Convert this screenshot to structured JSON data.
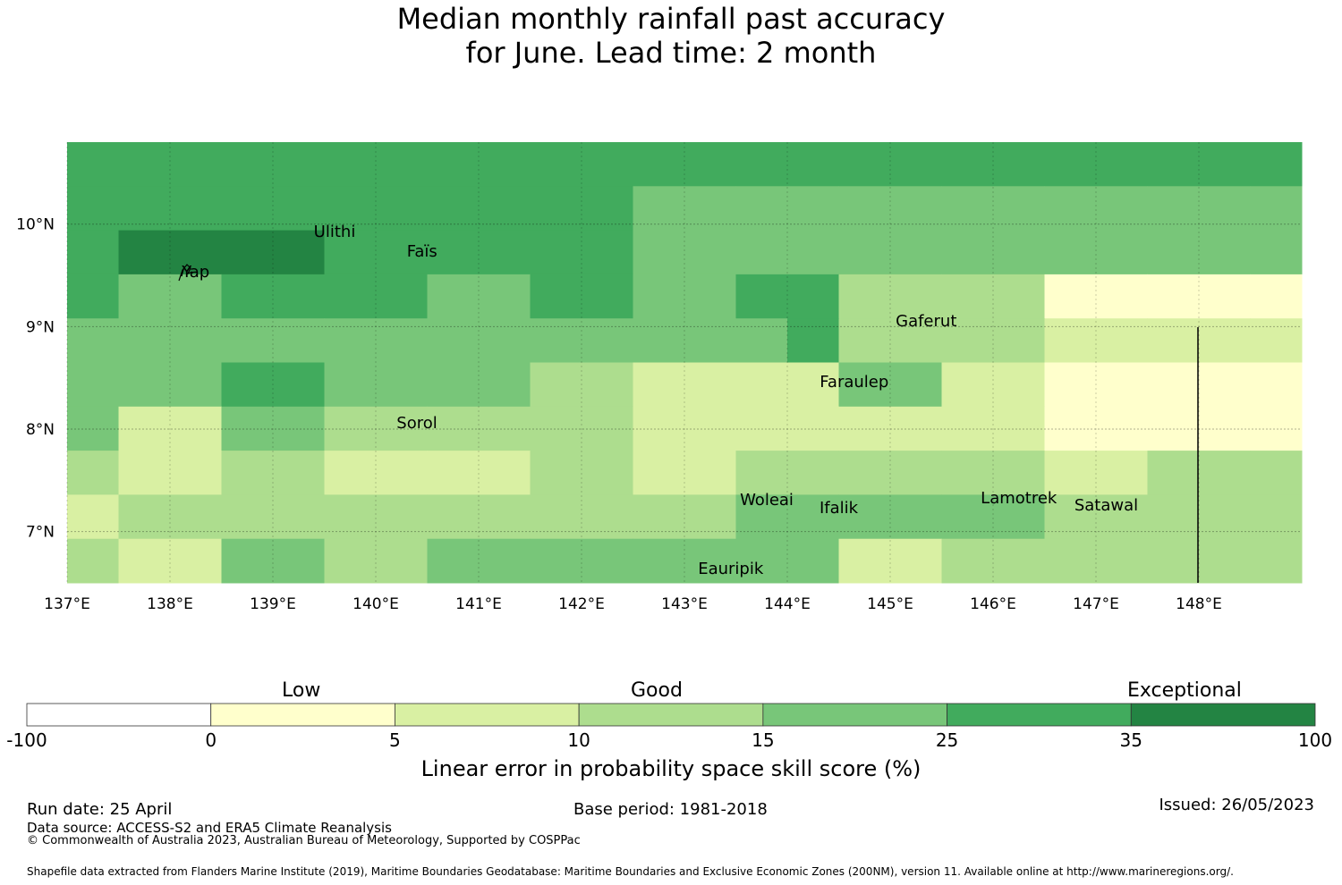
{
  "title": {
    "line1": "Median monthly rainfall past accuracy",
    "line2": "for June. Lead time: 2 month"
  },
  "map": {
    "lon_range": [
      137.0,
      149.0
    ],
    "lat_range": [
      6.5,
      10.8
    ],
    "lon_ticks": [
      "137°E",
      "138°E",
      "139°E",
      "140°E",
      "141°E",
      "142°E",
      "143°E",
      "144°E",
      "145°E",
      "146°E",
      "147°E",
      "148°E"
    ],
    "lat_ticks": [
      "10°N",
      "9°N",
      "8°N",
      "7°N"
    ],
    "places": [
      {
        "name": "Ulithi",
        "lon": 139.6,
        "lat": 9.92
      },
      {
        "name": "Faïs",
        "lon": 140.45,
        "lat": 9.73
      },
      {
        "name": "Yap",
        "lon": 138.25,
        "lat": 9.53
      },
      {
        "name": "Gaferut",
        "lon": 145.35,
        "lat": 9.05
      },
      {
        "name": "Faraulep",
        "lon": 144.65,
        "lat": 8.45
      },
      {
        "name": "Sorol",
        "lon": 140.4,
        "lat": 8.05
      },
      {
        "name": "Woleai",
        "lon": 143.8,
        "lat": 7.3
      },
      {
        "name": "Ifalik",
        "lon": 144.5,
        "lat": 7.22
      },
      {
        "name": "Lamotrek",
        "lon": 146.25,
        "lat": 7.32
      },
      {
        "name": "Satawal",
        "lon": 147.1,
        "lat": 7.25
      },
      {
        "name": "Eauripik",
        "lon": 143.45,
        "lat": 6.63
      }
    ],
    "grid_skill": [
      [
        25,
        25,
        25,
        25,
        25,
        25,
        25,
        25,
        25,
        25,
        25,
        25,
        25,
        25,
        25,
        25,
        25,
        25,
        25,
        25,
        25,
        25,
        25,
        25
      ],
      [
        25,
        25,
        25,
        25,
        25,
        25,
        25,
        25,
        25,
        25,
        25,
        15,
        15,
        15,
        15,
        15,
        15,
        15,
        15,
        15,
        15,
        15,
        15,
        15
      ],
      [
        25,
        35,
        35,
        35,
        35,
        25,
        25,
        25,
        25,
        25,
        25,
        15,
        15,
        15,
        15,
        15,
        15,
        15,
        15,
        15,
        15,
        15,
        15,
        15
      ],
      [
        25,
        15,
        15,
        25,
        25,
        25,
        25,
        15,
        15,
        25,
        25,
        15,
        15,
        25,
        25,
        10,
        10,
        10,
        10,
        0,
        0,
        0,
        0,
        0
      ],
      [
        15,
        15,
        15,
        15,
        15,
        15,
        15,
        15,
        15,
        15,
        15,
        15,
        15,
        15,
        25,
        10,
        10,
        10,
        10,
        5,
        5,
        5,
        5,
        5
      ],
      [
        15,
        15,
        15,
        25,
        25,
        15,
        15,
        15,
        15,
        10,
        10,
        5,
        5,
        5,
        5,
        15,
        15,
        5,
        5,
        0,
        0,
        0,
        0,
        0
      ],
      [
        15,
        5,
        5,
        15,
        15,
        10,
        10,
        10,
        10,
        10,
        10,
        5,
        5,
        5,
        5,
        5,
        5,
        5,
        5,
        0,
        0,
        0,
        0,
        0
      ],
      [
        10,
        5,
        5,
        10,
        10,
        5,
        5,
        5,
        5,
        10,
        10,
        5,
        5,
        10,
        10,
        10,
        10,
        10,
        10,
        5,
        5,
        10,
        10,
        10
      ],
      [
        5,
        10,
        10,
        10,
        10,
        10,
        10,
        10,
        10,
        10,
        10,
        10,
        10,
        15,
        15,
        15,
        15,
        15,
        15,
        10,
        10,
        10,
        10,
        10
      ],
      [
        10,
        5,
        5,
        15,
        15,
        10,
        10,
        15,
        15,
        15,
        15,
        15,
        15,
        15,
        15,
        5,
        5,
        10,
        10,
        10,
        10,
        10,
        10,
        10
      ]
    ]
  },
  "colorbar": {
    "section_labels": [
      "Low",
      "Good",
      "Exceptional"
    ],
    "ticks": [
      "-100",
      "0",
      "5",
      "10",
      "15",
      "25",
      "35",
      "100"
    ],
    "colors": [
      "#ffffff",
      "#ffffcc",
      "#d9f0a3",
      "#addd8e",
      "#78c679",
      "#41ab5d",
      "#238443"
    ],
    "title": "Linear error in probability space skill score (%)"
  },
  "footer": {
    "run_date": "Run date: 25 April",
    "base_period": "Base period: 1981-2018",
    "issued": "Issued: 26/05/2023",
    "data_source": "Data source: ACCESS-S2 and ERA5 Climate Reanalysis",
    "copyright": "© Commonwealth of Australia 2023, Australian Bureau of Meteorology, Supported by COSPPac",
    "shapefile": "Shapefile data extracted from Flanders Marine Institute (2019), Maritime Boundaries Geodatabase: Maritime Boundaries and Exclusive Economic Zones (200NM), version 11. Available online at http://www.marineregions.org/."
  }
}
